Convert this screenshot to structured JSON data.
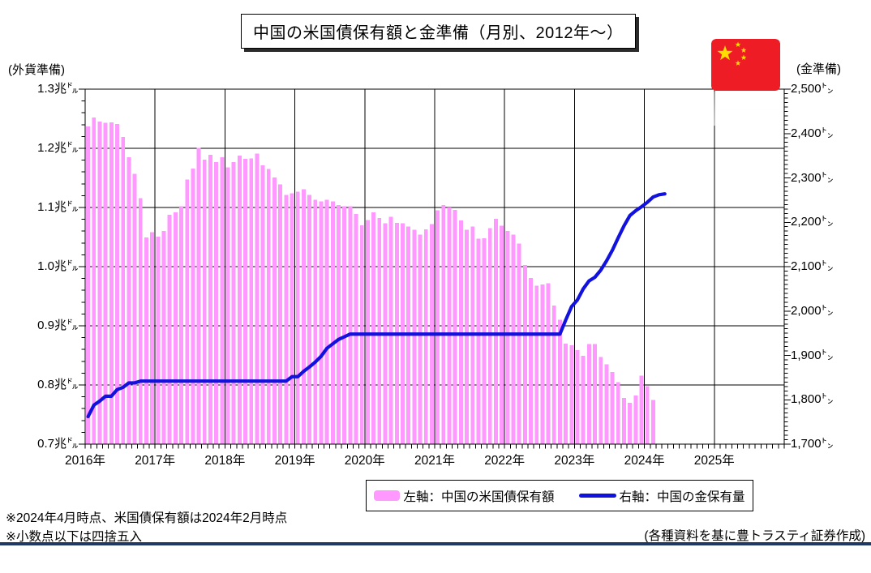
{
  "title": "中国の米国債保有額と金準備（月別、2012年～）",
  "left_axis": {
    "unit_label": "(外貨準備)",
    "tick_labels": [
      "1.3兆㌦",
      "1.2兆㌦",
      "1.1兆㌦",
      "1.0兆㌦",
      "0.9兆㌦",
      "0.8兆㌦",
      "0.7兆㌦"
    ]
  },
  "right_axis": {
    "unit_label": "(金準備)",
    "tick_labels": [
      "2,500㌧",
      "2,400㌧",
      "2,300㌧",
      "2,200㌧",
      "2,100㌧",
      "2,000㌧",
      "1,900㌧",
      "1,800㌧",
      "1,700㌧"
    ]
  },
  "x_axis": {
    "tick_labels": [
      "2016年",
      "2017年",
      "2018年",
      "2019年",
      "2020年",
      "2021年",
      "2022年",
      "2023年",
      "2024年",
      "2025年"
    ]
  },
  "legend": {
    "bar_label": "左軸：中国の米国債保有額",
    "line_label": "右軸：中国の金保有量"
  },
  "footnotes": [
    "※2024年4月時点、米国債保有額は2024年2月時点",
    "※小数点以下は四捨五入"
  ],
  "attribution": "(各種資料を基に豊トラスティ証券作成)",
  "colors": {
    "bar": "#FF99FF",
    "line": "#1212DE",
    "grid": "#000000",
    "bottom_rule": "#1F3864",
    "flag_red": "#EE1C25",
    "flag_yellow": "#FFDE00"
  },
  "chart_data": {
    "type": "bar",
    "title": "中国の米国債保有額と金準備（月別、2012年～）",
    "x_start": "2016-01",
    "months_displayed": 120,
    "x_year_labels": [
      "2016年",
      "2017年",
      "2018年",
      "2019年",
      "2020年",
      "2021年",
      "2022年",
      "2023年",
      "2024年",
      "2025年"
    ],
    "left_ylim": [
      0.7,
      1.3
    ],
    "right_ylim": [
      1700,
      2500
    ],
    "grid": true,
    "legend_position": "bottom",
    "series": [
      {
        "name": "左軸：中国の米国債保有額",
        "type": "bar",
        "axis": "left",
        "unit": "billion USD (plotted as 兆ドル)",
        "values": [
          1237,
          1252,
          1245,
          1243,
          1244,
          1241,
          1219,
          1185,
          1157,
          1116,
          1049,
          1058,
          1051,
          1060,
          1088,
          1092,
          1102,
          1147,
          1166,
          1201,
          1181,
          1189,
          1177,
          1185,
          1168,
          1177,
          1188,
          1182,
          1183,
          1191,
          1171,
          1165,
          1151,
          1139,
          1121,
          1124,
          1127,
          1131,
          1121,
          1113,
          1110,
          1113,
          1110,
          1104,
          1102,
          1102,
          1089,
          1070,
          1079,
          1092,
          1082,
          1073,
          1084,
          1074,
          1073,
          1068,
          1062,
          1054,
          1063,
          1072,
          1095,
          1104,
          1100,
          1096,
          1078,
          1062,
          1068,
          1047,
          1048,
          1065,
          1081,
          1069,
          1060,
          1054,
          1039,
          1003,
          981,
          968,
          970,
          972,
          934,
          910,
          870,
          867,
          859,
          849,
          869,
          869,
          847,
          835,
          822,
          805,
          778,
          770,
          782,
          816,
          798,
          775
        ]
      },
      {
        "name": "右軸：中国の金保有量",
        "type": "line",
        "axis": "right",
        "unit": "トン",
        "values": [
          1762,
          1788,
          1797,
          1808,
          1808,
          1823,
          1828,
          1838,
          1838,
          1842,
          1842,
          1842,
          1842,
          1842,
          1842,
          1842,
          1842,
          1842,
          1842,
          1842,
          1842,
          1842,
          1842,
          1842,
          1842,
          1842,
          1842,
          1842,
          1842,
          1842,
          1842,
          1842,
          1842,
          1842,
          1842,
          1852,
          1852,
          1864,
          1874,
          1885,
          1898,
          1916,
          1926,
          1936,
          1942,
          1948,
          1948,
          1948,
          1948,
          1948,
          1948,
          1948,
          1948,
          1948,
          1948,
          1948,
          1948,
          1948,
          1948,
          1948,
          1948,
          1948,
          1948,
          1948,
          1948,
          1948,
          1948,
          1948,
          1948,
          1948,
          1948,
          1948,
          1948,
          1948,
          1948,
          1948,
          1948,
          1948,
          1948,
          1948,
          1948,
          1948,
          1980,
          2010,
          2025,
          2050,
          2068,
          2076,
          2092,
          2113,
          2137,
          2165,
          2192,
          2215,
          2226,
          2235,
          2245,
          2257,
          2262,
          2264
        ]
      }
    ]
  }
}
